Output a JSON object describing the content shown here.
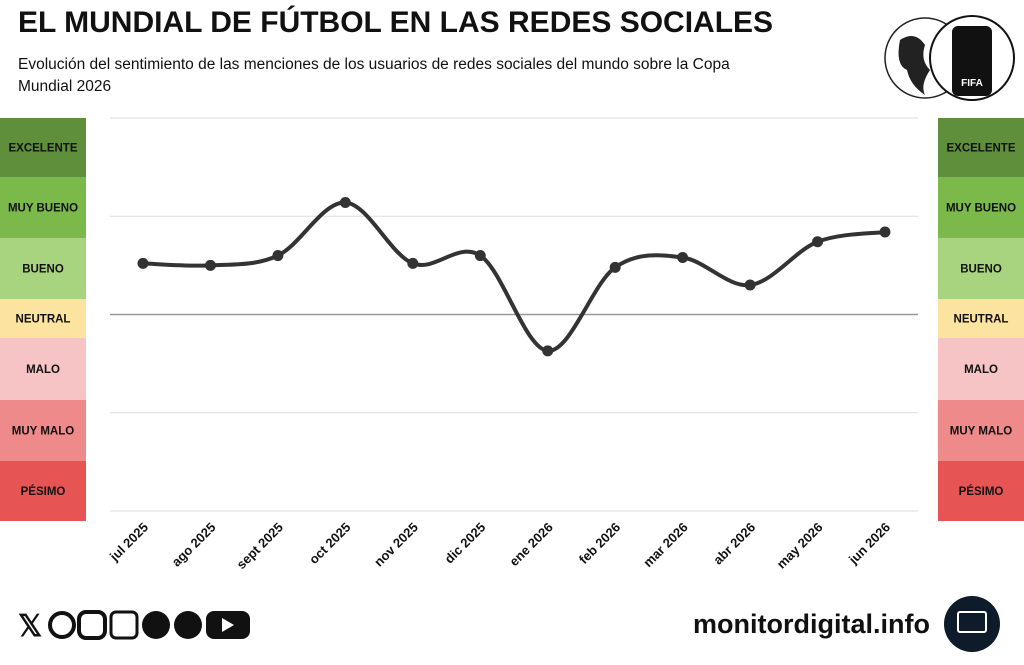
{
  "chart_data": {
    "type": "line",
    "title": "EL MUNDIAL DE FÚTBOL EN LAS REDES SOCIALES",
    "subtitle": "Evolución del sentimiento de las menciones de los usuarios de redes sociales del mundo sobre la Copa Mundial 2026",
    "categories": [
      "jul 2025",
      "ago 2025",
      "sept 2025",
      "oct 2025",
      "nov 2025",
      "dic 2025",
      "ene 2026",
      "feb 2026",
      "mar 2026",
      "abr 2026",
      "may 2026",
      "jun 2026"
    ],
    "values": [
      0.52,
      0.5,
      0.6,
      1.14,
      0.52,
      0.6,
      -0.37,
      0.48,
      0.58,
      0.3,
      0.74,
      0.84
    ],
    "color": "#333333",
    "ylim": [
      -2,
      2
    ],
    "yticks": [
      -2,
      -1,
      0,
      1,
      2
    ],
    "grid": true,
    "sentiment_levels": [
      {
        "label": "EXCELENTE",
        "color": "#5f8f3a"
      },
      {
        "label": "MUY BUENO",
        "color": "#7bb94b"
      },
      {
        "label": "BUENO",
        "color": "#a9d47f"
      },
      {
        "label": "NEUTRAL",
        "color": "#fce3a0"
      },
      {
        "label": "MALO",
        "color": "#f6c4c4"
      },
      {
        "label": "MUY MALO",
        "color": "#ee8a8a"
      },
      {
        "label": "PÉSIMO",
        "color": "#e65454"
      }
    ]
  },
  "logo": {
    "text": "FIFA"
  },
  "footer": {
    "site": "monitordigital.info"
  }
}
